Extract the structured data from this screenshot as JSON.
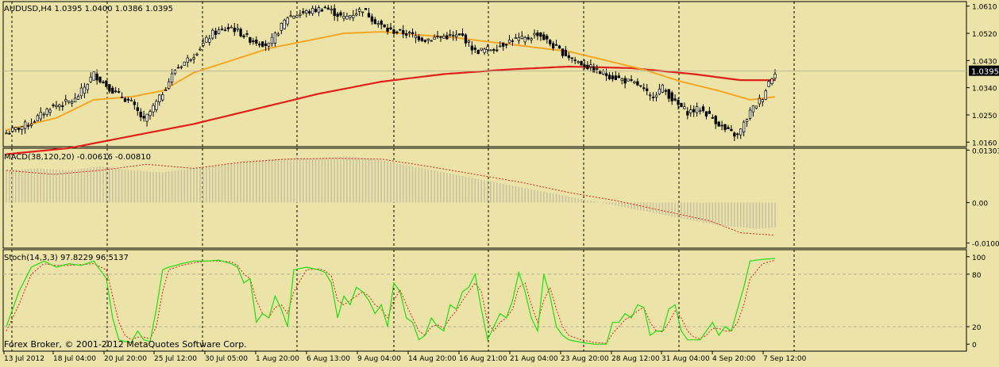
{
  "symbol_header": "AUDUSD,H4  1.0395 1.0400 1.0386 1.0395",
  "current_price": "1.0395",
  "copyright": "Forex Broker, © 2001-2012 MetaQuotes Software Corp.",
  "colors": {
    "background": "#ebe3a7",
    "axis": "#000000",
    "candle": "#000000",
    "ma_fast": "#f5a623",
    "ma_slow": "#e0201b",
    "macd_hist": "#c8c2a2",
    "macd_signal": "#e0201b",
    "stoch_main": "#22dd11",
    "stoch_signal": "#e0201b",
    "price_label_bg": "#000000",
    "price_label_text": "#ffffff"
  },
  "chart_data": [
    {
      "type": "candlestick",
      "title": "AUDUSD,H4  1.0395 1.0400 1.0386 1.0395",
      "ylim": [
        1.0145,
        1.0625
      ],
      "y_ticks": [
        "1.0610",
        "1.0520",
        "1.0430",
        "1.0340",
        "1.0250",
        "1.0160"
      ],
      "last_price": "1.0395",
      "x_ticks": [
        "13 Jul 2012",
        "18 Jul 04:00",
        "20 Jul 20:00",
        "25 Jul 12:00",
        "30 Jul 05:00",
        "1 Aug 20:00",
        "6 Aug 13:00",
        "9 Aug 04:00",
        "14 Aug 20:00",
        "16 Aug 21:00",
        "21 Aug 04:00",
        "23 Aug 20:00",
        "28 Aug 12:00",
        "31 Aug 04:00",
        "4 Sep 20:00",
        "7 Sep 12:00"
      ],
      "close_anchors": [
        [
          0,
          1.019
        ],
        [
          8,
          1.0225
        ],
        [
          14,
          1.0275
        ],
        [
          22,
          1.03
        ],
        [
          28,
          1.0385
        ],
        [
          34,
          1.033
        ],
        [
          40,
          1.029
        ],
        [
          44,
          1.023
        ],
        [
          49,
          1.0305
        ],
        [
          54,
          1.04
        ],
        [
          60,
          1.045
        ],
        [
          66,
          1.052
        ],
        [
          72,
          1.054
        ],
        [
          78,
          1.05
        ],
        [
          84,
          1.048
        ],
        [
          90,
          1.0575
        ],
        [
          96,
          1.059
        ],
        [
          102,
          1.0605
        ],
        [
          108,
          1.057
        ],
        [
          114,
          1.06
        ],
        [
          118,
          1.056
        ],
        [
          122,
          1.053
        ],
        [
          128,
          1.052
        ],
        [
          134,
          1.05
        ],
        [
          140,
          1.051
        ],
        [
          146,
          1.051
        ],
        [
          150,
          1.046
        ],
        [
          156,
          1.047
        ],
        [
          162,
          1.05
        ],
        [
          166,
          1.05
        ],
        [
          170,
          1.052
        ],
        [
          176,
          1.047
        ],
        [
          182,
          1.043
        ],
        [
          186,
          1.041
        ],
        [
          190,
          1.039
        ],
        [
          196,
          1.037
        ],
        [
          202,
          1.035
        ],
        [
          206,
          1.031
        ],
        [
          210,
          1.034
        ],
        [
          214,
          1.029
        ],
        [
          218,
          1.026
        ],
        [
          222,
          1.027
        ],
        [
          226,
          1.024
        ],
        [
          230,
          1.02
        ],
        [
          234,
          1.018
        ],
        [
          238,
          1.026
        ],
        [
          242,
          1.031
        ],
        [
          244,
          1.036
        ],
        [
          246,
          1.0395
        ]
      ],
      "ma_fast_anchors": [
        [
          0,
          1.02
        ],
        [
          16,
          1.024
        ],
        [
          28,
          1.03
        ],
        [
          40,
          1.031
        ],
        [
          50,
          1.033
        ],
        [
          60,
          1.039
        ],
        [
          72,
          1.043
        ],
        [
          84,
          1.047
        ],
        [
          96,
          1.0495
        ],
        [
          108,
          1.052
        ],
        [
          120,
          1.0525
        ],
        [
          132,
          1.0515
        ],
        [
          144,
          1.0505
        ],
        [
          156,
          1.049
        ],
        [
          168,
          1.0475
        ],
        [
          180,
          1.046
        ],
        [
          192,
          1.043
        ],
        [
          204,
          1.04
        ],
        [
          216,
          1.036
        ],
        [
          228,
          1.033
        ],
        [
          238,
          1.03
        ],
        [
          246,
          1.031
        ]
      ],
      "ma_slow_anchors": [
        [
          0,
          1.012
        ],
        [
          20,
          1.014
        ],
        [
          40,
          1.018
        ],
        [
          60,
          1.022
        ],
        [
          80,
          1.027
        ],
        [
          100,
          1.032
        ],
        [
          120,
          1.036
        ],
        [
          140,
          1.0385
        ],
        [
          160,
          1.04
        ],
        [
          180,
          1.041
        ],
        [
          200,
          1.0405
        ],
        [
          220,
          1.0385
        ],
        [
          235,
          1.0365
        ],
        [
          246,
          1.0365
        ]
      ]
    },
    {
      "type": "bar",
      "title": "MACD(38,120,20) -0.00616 -0.00810",
      "ylim": [
        -0.0113,
        0.0135
      ],
      "y_ticks": [
        "0.01303",
        "0.00",
        "-0.01004"
      ],
      "hist_anchors": [
        [
          0,
          0.008
        ],
        [
          10,
          0.0085
        ],
        [
          20,
          0.008
        ],
        [
          30,
          0.009
        ],
        [
          40,
          0.008
        ],
        [
          50,
          0.0075
        ],
        [
          60,
          0.0085
        ],
        [
          70,
          0.0095
        ],
        [
          80,
          0.0105
        ],
        [
          90,
          0.011
        ],
        [
          100,
          0.011
        ],
        [
          110,
          0.0115
        ],
        [
          120,
          0.0105
        ],
        [
          130,
          0.009
        ],
        [
          140,
          0.0075
        ],
        [
          150,
          0.006
        ],
        [
          160,
          0.0045
        ],
        [
          170,
          0.003
        ],
        [
          180,
          0.0015
        ],
        [
          190,
          0.0
        ],
        [
          200,
          -0.0015
        ],
        [
          210,
          -0.003
        ],
        [
          220,
          -0.0045
        ],
        [
          230,
          -0.0058
        ],
        [
          240,
          -0.0065
        ],
        [
          246,
          -0.0062
        ]
      ],
      "signal_anchors": [
        [
          0,
          0.008
        ],
        [
          15,
          0.007
        ],
        [
          30,
          0.008
        ],
        [
          45,
          0.0095
        ],
        [
          60,
          0.0085
        ],
        [
          75,
          0.01
        ],
        [
          90,
          0.0108
        ],
        [
          105,
          0.011
        ],
        [
          120,
          0.0108
        ],
        [
          135,
          0.009
        ],
        [
          150,
          0.007
        ],
        [
          165,
          0.005
        ],
        [
          180,
          0.0025
        ],
        [
          195,
          0.0005
        ],
        [
          210,
          -0.002
        ],
        [
          225,
          -0.0045
        ],
        [
          235,
          -0.0075
        ],
        [
          246,
          -0.0081
        ]
      ]
    },
    {
      "type": "line",
      "title": "Stoch(14,3,3) 97.8229 96.5137",
      "ylim": [
        -8,
        108
      ],
      "y_ticks": [
        "100",
        "80",
        "20",
        "0"
      ],
      "level_lines": [
        80,
        20
      ],
      "main_anchors": [
        [
          0,
          20
        ],
        [
          4,
          60
        ],
        [
          8,
          88
        ],
        [
          12,
          95
        ],
        [
          16,
          88
        ],
        [
          20,
          92
        ],
        [
          24,
          90
        ],
        [
          28,
          95
        ],
        [
          32,
          75
        ],
        [
          34,
          30
        ],
        [
          36,
          5
        ],
        [
          38,
          3
        ],
        [
          40,
          2
        ],
        [
          42,
          15
        ],
        [
          44,
          5
        ],
        [
          46,
          3
        ],
        [
          48,
          40
        ],
        [
          50,
          85
        ],
        [
          52,
          88
        ],
        [
          56,
          92
        ],
        [
          60,
          95
        ],
        [
          64,
          95
        ],
        [
          68,
          96
        ],
        [
          72,
          92
        ],
        [
          74,
          88
        ],
        [
          76,
          70
        ],
        [
          78,
          75
        ],
        [
          80,
          25
        ],
        [
          82,
          35
        ],
        [
          84,
          30
        ],
        [
          86,
          55
        ],
        [
          88,
          40
        ],
        [
          90,
          20
        ],
        [
          92,
          85
        ],
        [
          96,
          88
        ],
        [
          100,
          85
        ],
        [
          102,
          82
        ],
        [
          104,
          70
        ],
        [
          106,
          30
        ],
        [
          108,
          55
        ],
        [
          110,
          45
        ],
        [
          112,
          65
        ],
        [
          114,
          60
        ],
        [
          116,
          50
        ],
        [
          118,
          35
        ],
        [
          120,
          45
        ],
        [
          122,
          20
        ],
        [
          124,
          70
        ],
        [
          126,
          60
        ],
        [
          128,
          30
        ],
        [
          130,
          25
        ],
        [
          132,
          5
        ],
        [
          134,
          10
        ],
        [
          136,
          30
        ],
        [
          138,
          20
        ],
        [
          140,
          15
        ],
        [
          142,
          45
        ],
        [
          144,
          40
        ],
        [
          146,
          60
        ],
        [
          148,
          65
        ],
        [
          150,
          80
        ],
        [
          152,
          40
        ],
        [
          154,
          5
        ],
        [
          156,
          20
        ],
        [
          158,
          35
        ],
        [
          160,
          30
        ],
        [
          162,
          50
        ],
        [
          164,
          82
        ],
        [
          166,
          60
        ],
        [
          168,
          30
        ],
        [
          170,
          15
        ],
        [
          172,
          80
        ],
        [
          174,
          55
        ],
        [
          176,
          20
        ],
        [
          178,
          10
        ],
        [
          180,
          5
        ],
        [
          184,
          2
        ],
        [
          188,
          0
        ],
        [
          192,
          0
        ],
        [
          194,
          25
        ],
        [
          196,
          25
        ],
        [
          198,
          35
        ],
        [
          200,
          30
        ],
        [
          202,
          45
        ],
        [
          204,
          42
        ],
        [
          206,
          10
        ],
        [
          208,
          15
        ],
        [
          210,
          15
        ],
        [
          212,
          40
        ],
        [
          214,
          45
        ],
        [
          216,
          15
        ],
        [
          218,
          5
        ],
        [
          220,
          5
        ],
        [
          222,
          5
        ],
        [
          224,
          15
        ],
        [
          226,
          25
        ],
        [
          228,
          10
        ],
        [
          230,
          20
        ],
        [
          232,
          15
        ],
        [
          234,
          40
        ],
        [
          236,
          65
        ],
        [
          238,
          95
        ],
        [
          242,
          97
        ],
        [
          246,
          98
        ]
      ],
      "signal_anchors": [
        [
          0,
          15
        ],
        [
          4,
          45
        ],
        [
          8,
          80
        ],
        [
          12,
          92
        ],
        [
          16,
          90
        ],
        [
          20,
          90
        ],
        [
          24,
          91
        ],
        [
          28,
          92
        ],
        [
          32,
          85
        ],
        [
          34,
          55
        ],
        [
          36,
          25
        ],
        [
          38,
          10
        ],
        [
          40,
          5
        ],
        [
          42,
          8
        ],
        [
          44,
          8
        ],
        [
          46,
          6
        ],
        [
          48,
          20
        ],
        [
          50,
          60
        ],
        [
          52,
          85
        ],
        [
          56,
          90
        ],
        [
          60,
          93
        ],
        [
          64,
          95
        ],
        [
          68,
          95
        ],
        [
          72,
          94
        ],
        [
          74,
          90
        ],
        [
          76,
          80
        ],
        [
          78,
          75
        ],
        [
          80,
          50
        ],
        [
          82,
          35
        ],
        [
          84,
          30
        ],
        [
          86,
          42
        ],
        [
          88,
          45
        ],
        [
          90,
          35
        ],
        [
          92,
          60
        ],
        [
          96,
          85
        ],
        [
          100,
          86
        ],
        [
          102,
          84
        ],
        [
          104,
          78
        ],
        [
          106,
          50
        ],
        [
          108,
          45
        ],
        [
          110,
          50
        ],
        [
          112,
          55
        ],
        [
          114,
          60
        ],
        [
          116,
          55
        ],
        [
          118,
          45
        ],
        [
          120,
          40
        ],
        [
          122,
          30
        ],
        [
          124,
          50
        ],
        [
          126,
          62
        ],
        [
          128,
          45
        ],
        [
          130,
          30
        ],
        [
          132,
          15
        ],
        [
          134,
          10
        ],
        [
          136,
          20
        ],
        [
          138,
          22
        ],
        [
          140,
          18
        ],
        [
          142,
          30
        ],
        [
          144,
          38
        ],
        [
          146,
          50
        ],
        [
          148,
          60
        ],
        [
          150,
          70
        ],
        [
          152,
          60
        ],
        [
          154,
          25
        ],
        [
          156,
          15
        ],
        [
          158,
          25
        ],
        [
          160,
          30
        ],
        [
          162,
          40
        ],
        [
          164,
          65
        ],
        [
          166,
          70
        ],
        [
          168,
          45
        ],
        [
          170,
          25
        ],
        [
          172,
          50
        ],
        [
          174,
          65
        ],
        [
          176,
          40
        ],
        [
          178,
          20
        ],
        [
          180,
          10
        ],
        [
          184,
          5
        ],
        [
          188,
          2
        ],
        [
          192,
          1
        ],
        [
          194,
          12
        ],
        [
          196,
          20
        ],
        [
          198,
          28
        ],
        [
          200,
          32
        ],
        [
          202,
          38
        ],
        [
          204,
          42
        ],
        [
          206,
          25
        ],
        [
          208,
          15
        ],
        [
          210,
          14
        ],
        [
          212,
          25
        ],
        [
          214,
          38
        ],
        [
          216,
          30
        ],
        [
          218,
          15
        ],
        [
          220,
          8
        ],
        [
          222,
          6
        ],
        [
          224,
          10
        ],
        [
          226,
          18
        ],
        [
          228,
          18
        ],
        [
          230,
          15
        ],
        [
          232,
          15
        ],
        [
          234,
          25
        ],
        [
          236,
          45
        ],
        [
          238,
          75
        ],
        [
          242,
          92
        ],
        [
          246,
          96
        ]
      ]
    }
  ]
}
